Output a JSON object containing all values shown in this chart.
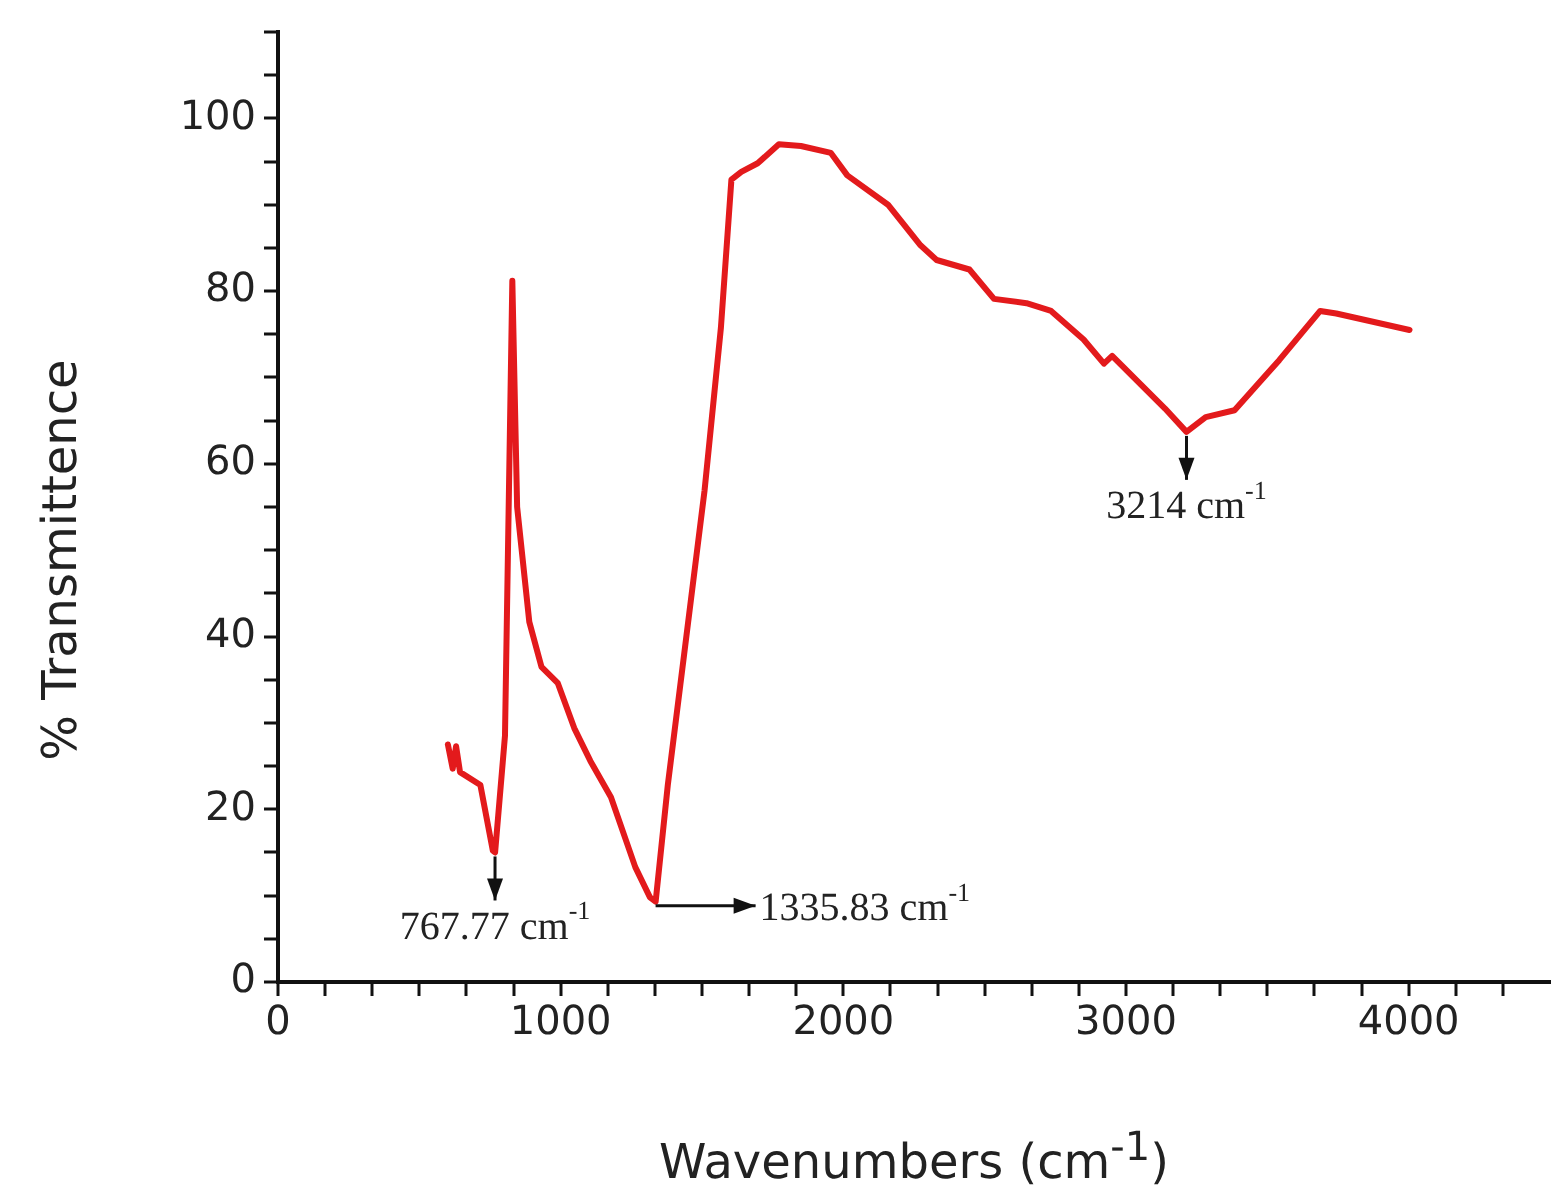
{
  "chart_data": {
    "type": "line",
    "xlabel": "Wavenumbers (cm$^{-1}$)",
    "ylabel": "% Transmittence",
    "xlim": [
      0,
      4500
    ],
    "ylim": [
      0,
      110
    ],
    "xticks": [
      0,
      {
        "value": 166.7,
        "label": null
      },
      {
        "value": 333.3,
        "label": null
      },
      {
        "value": 500,
        "label": null
      },
      {
        "value": 666.7,
        "label": null
      },
      {
        "value": 833.3,
        "label": null
      },
      1000,
      {
        "value": 1166.7,
        "label": null
      },
      {
        "value": 1333.3,
        "label": null
      },
      {
        "value": 1500,
        "label": null
      },
      {
        "value": 1666.7,
        "label": null
      },
      {
        "value": 1833.3,
        "label": null
      },
      2000,
      {
        "value": 2166.7,
        "label": null
      },
      {
        "value": 2333.3,
        "label": null
      },
      {
        "value": 2500,
        "label": null
      },
      {
        "value": 2666.7,
        "label": null
      },
      {
        "value": 2833.3,
        "label": null
      },
      3000,
      {
        "value": 3166.7,
        "label": null
      },
      {
        "value": 3333.3,
        "label": null
      },
      {
        "value": 3500,
        "label": null
      },
      {
        "value": 3666.7,
        "label": null
      },
      {
        "value": 3833.3,
        "label": null
      },
      4000,
      {
        "value": 4166.7,
        "label": null
      },
      {
        "value": 4333.3,
        "label": null
      }
    ],
    "yticks": [
      0,
      {
        "value": 5,
        "label": null
      },
      {
        "value": 10,
        "label": null
      },
      {
        "value": 15,
        "label": null
      },
      20,
      {
        "value": 25,
        "label": null
      },
      {
        "value": 30,
        "label": null
      },
      {
        "value": 35,
        "label": null
      },
      40,
      {
        "value": 45,
        "label": null
      },
      {
        "value": 50,
        "label": null
      },
      {
        "value": 55,
        "label": null
      },
      60,
      {
        "value": 65,
        "label": null
      },
      {
        "value": 70,
        "label": null
      },
      {
        "value": 75,
        "label": null
      },
      80,
      {
        "value": 85,
        "label": null
      },
      {
        "value": 90,
        "label": null
      },
      {
        "value": 95,
        "label": null
      },
      100,
      {
        "value": 105,
        "label": null
      },
      {
        "value": 110,
        "label": null
      }
    ],
    "grid": false,
    "legend": false,
    "marker": "none",
    "line_style": "solid",
    "series": [
      {
        "color": "#e31a1c",
        "x": [
          601,
          618,
          630,
          644,
          716,
          760,
          768,
          803,
          829,
          846,
          889,
          932,
          990,
          1048,
          1105,
          1178,
          1264,
          1316,
          1336,
          1379,
          1437,
          1509,
          1567,
          1604,
          1639,
          1697,
          1772,
          1850,
          1956,
          2014,
          2158,
          2273,
          2330,
          2446,
          2533,
          2648,
          2735,
          2850,
          2922,
          2951,
          3052,
          3138,
          3214,
          3282,
          3384,
          3542,
          3687,
          3744,
          4003
        ],
        "values": [
          27.5,
          24.7,
          27.3,
          24.3,
          22.8,
          15.2,
          15,
          28.5,
          81.2,
          55,
          41.7,
          36.5,
          34.6,
          29.4,
          25.6,
          21.4,
          13.3,
          9.8,
          9.3,
          22.8,
          38,
          56.9,
          75.8,
          92.9,
          93.8,
          94.8,
          97,
          96.8,
          96,
          93.4,
          90,
          85.3,
          83.6,
          82.5,
          79.1,
          78.6,
          77.7,
          74.4,
          71.6,
          72.5,
          69.2,
          66.4,
          63.7,
          65.4,
          66.2,
          72,
          77.7,
          77.4,
          75.5
        ]
      }
    ],
    "annotations": [
      {
        "text": "767.77 cm$^{-1}$",
        "x": 767.77,
        "y": 15
      },
      {
        "text": "1335.83 cm$^{-1}$",
        "x": 1335.83,
        "y": 9.3
      },
      {
        "text": "3214 cm$^{-1}$",
        "x": 3214,
        "y": 63.7
      }
    ]
  }
}
